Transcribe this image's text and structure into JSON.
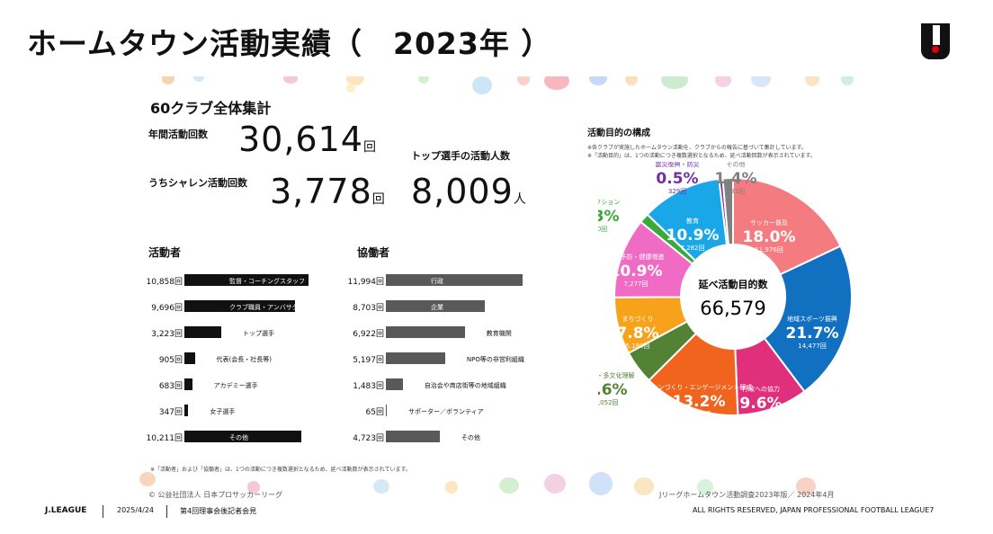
{
  "title": "ホームタウン活動実績（　2023年 ）",
  "summary": {
    "heading": "60クラブ全体集計",
    "annual_label": "年間活動回数",
    "annual_value": "30,614",
    "annual_unit": "回",
    "shaleen_label": "うちシャレン活動回数",
    "shaleen_value": "3,778",
    "shaleen_unit": "回",
    "top_label": "トップ選手の活動人数",
    "top_value": "8,009",
    "top_unit": "人"
  },
  "actors": {
    "heading": "活動者",
    "rows": [
      {
        "value": "10,858回",
        "label": "監督・コーチングスタッフ",
        "n": 10858
      },
      {
        "value": "9,696回",
        "label": "クラブ職員・アンバサダー",
        "n": 9696
      },
      {
        "value": "3,223回",
        "label": "トップ選手",
        "n": 3223
      },
      {
        "value": "905回",
        "label": "代表(会長・社長等)",
        "n": 905
      },
      {
        "value": "683回",
        "label": "アカデミー選手",
        "n": 683
      },
      {
        "value": "347回",
        "label": "女子選手",
        "n": 347
      },
      {
        "value": "10,211回",
        "label": "その他",
        "n": 10211
      }
    ]
  },
  "partners": {
    "heading": "協働者",
    "rows": [
      {
        "value": "11,994回",
        "label": "行政",
        "n": 11994
      },
      {
        "value": "8,703回",
        "label": "企業",
        "n": 8703
      },
      {
        "value": "6,922回",
        "label": "教育機関",
        "n": 6922
      },
      {
        "value": "5,197回",
        "label": "NPO等の非営利組織",
        "n": 5197
      },
      {
        "value": "1,483回",
        "label": "自治会や商店街等の地域組織",
        "n": 1483
      },
      {
        "value": "65回",
        "label": "サポーター／ボランティア",
        "n": 65
      },
      {
        "value": "4,723回",
        "label": "その他",
        "n": 4723
      }
    ]
  },
  "bottom_note": "※「活動者」および「協働者」は、1つの活動につき複数選択となるため、延べ活動数が表示されています。",
  "purpose": {
    "heading": "活動目的の構成",
    "note1": "※各クラブが実施したホームタウン活動を、クラブからの報告に基づいて集計しています。",
    "note2": "※「活動目的」は、1つの活動につき複数選択となるため、延べ活動回数が表示されています。",
    "center_label": "延べ活動目的数",
    "center_value": "66,579"
  },
  "chart_data": {
    "type": "pie",
    "title": "活動目的の構成",
    "total": 66579,
    "slices": [
      {
        "name": "サッカー普及",
        "percent": 18.0,
        "count": 11976,
        "pct_label": "18.0%",
        "count_label": "11,976回",
        "color": "#f47b7f"
      },
      {
        "name": "地域スポーツ振興",
        "percent": 21.7,
        "count": 14477,
        "pct_label": "21.7%",
        "count_label": "14,477回",
        "color": "#1170c0"
      },
      {
        "name": "行政への協力",
        "percent": 9.6,
        "count": 6409,
        "pct_label": "9.6%",
        "count_label": "6,409回",
        "color": "#e0307c"
      },
      {
        "name": "ファンづくり・エンゲージメント醸成",
        "percent": 13.2,
        "count": 8776,
        "pct_label": "13.2%",
        "count_label": "8,776回",
        "color": "#f0641e"
      },
      {
        "name": "多様性・多文化理解",
        "percent": 4.6,
        "count": 3052,
        "pct_label": "4.6%",
        "count_label": "3,052回",
        "color": "#548235"
      },
      {
        "name": "まちづくり",
        "percent": 7.8,
        "count": 5180,
        "pct_label": "7.8%",
        "count_label": "5,180回",
        "color": "#f7a21b"
      },
      {
        "name": "介護予防・健康増進",
        "percent": 10.9,
        "count": 7277,
        "pct_label": "10.9%",
        "count_label": "7,277回",
        "color": "#f06cc4"
      },
      {
        "name": "気候アクション",
        "percent": 1.3,
        "count": 890,
        "pct_label": "1.3%",
        "count_label": "890回",
        "color": "#3aa83a"
      },
      {
        "name": "教育",
        "percent": 10.9,
        "count": 7282,
        "pct_label": "10.9%",
        "count_label": "7,282回",
        "color": "#1aa7e8"
      },
      {
        "name": "震災復興・防災",
        "percent": 0.5,
        "count": 329,
        "pct_label": "0.5%",
        "count_label": "329回",
        "color": "#7030a0"
      },
      {
        "name": "その他",
        "percent": 1.4,
        "count": 931,
        "pct_label": "1.4%",
        "count_label": "931回",
        "color": "#808080"
      }
    ]
  },
  "copyright_inner": "© 公益社団法人 日本プロサッカーリーグ",
  "source": "Jリーグホームタウン活動調査2023年版／ 2024年4月",
  "footer": {
    "brand": "J.LEAGUE",
    "date": "2025/4/24",
    "meeting": "第4回理事会後記者会見",
    "rights": "ALL RIGHTS RESERVED, JAPAN PROFESSIONAL FOOTBALL LEAGUE",
    "page": "7"
  }
}
